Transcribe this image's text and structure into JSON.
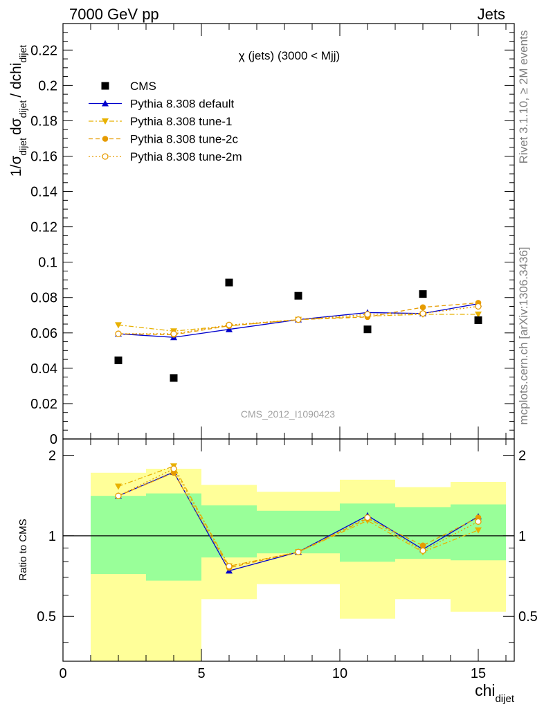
{
  "header": {
    "left": "7000 GeV pp",
    "right": "Jets"
  },
  "side_labels": {
    "rivet": "Rivet 3.1.10, ≥ 2M events",
    "mcplots": "mcplots.cern.ch [arXiv:1306.3436]"
  },
  "chart_data": [
    {
      "type": "scatter",
      "title": "χ (jets) (3000 < Mjj)",
      "watermark": "CMS_2012_I1090423",
      "ylabel": "1/σ_dijet dσ_dijet / dchi_dijet",
      "xlim": [
        0,
        16.3
      ],
      "ylim": [
        0,
        0.235
      ],
      "x_ticks": [
        0,
        5,
        10,
        15
      ],
      "y_ticks": [
        0,
        0.02,
        0.04,
        0.06,
        0.08,
        0.1,
        0.12,
        0.14,
        0.16,
        0.18,
        0.2,
        0.22
      ],
      "y_tick_labels": [
        "0",
        "0.02",
        "0.04",
        "0.06",
        "0.08",
        "0.1",
        "0.12",
        "0.14",
        "0.16",
        "0.18",
        "0.2",
        "0.22"
      ],
      "legend_position": "top-left",
      "series": [
        {
          "name": "CMS",
          "color": "#000000",
          "marker": "square",
          "line": "none",
          "x": [
            2,
            4,
            6,
            8.5,
            11,
            13,
            15
          ],
          "y": [
            0.0445,
            0.0345,
            0.0885,
            0.081,
            0.062,
            0.082,
            0.0672
          ]
        },
        {
          "name": "Pythia 8.308 default",
          "color": "#0000cc",
          "marker": "triangle-up",
          "line": "solid",
          "x": [
            2,
            4,
            6,
            8.5,
            11,
            13,
            15
          ],
          "y": [
            0.0595,
            0.0575,
            0.062,
            0.0675,
            0.0715,
            0.071,
            0.0765
          ]
        },
        {
          "name": "Pythia 8.308 tune-1",
          "color": "#e8b100",
          "marker": "triangle-down",
          "line": "dashdot",
          "x": [
            2,
            4,
            6,
            8.5,
            11,
            13,
            15
          ],
          "y": [
            0.0645,
            0.061,
            0.064,
            0.0675,
            0.0695,
            0.0705,
            0.0705
          ]
        },
        {
          "name": "Pythia 8.308 tune-2c",
          "color": "#e69b00",
          "marker": "circle",
          "line": "dashed",
          "x": [
            2,
            4,
            6,
            8.5,
            11,
            13,
            15
          ],
          "y": [
            0.0595,
            0.059,
            0.064,
            0.0675,
            0.069,
            0.0745,
            0.077
          ]
        },
        {
          "name": "Pythia 8.308 tune-2m",
          "color": "#e69b00",
          "marker": "circle-open",
          "line": "dotted",
          "x": [
            2,
            4,
            6,
            8.5,
            11,
            13,
            15
          ],
          "y": [
            0.0595,
            0.0595,
            0.0645,
            0.0675,
            0.0705,
            0.071,
            0.075
          ]
        }
      ]
    },
    {
      "type": "scatter",
      "xlabel": "chi_dijet",
      "ylabel": "Ratio to CMS",
      "xlim": [
        0,
        16.3
      ],
      "ylim": [
        0.34,
        2.3
      ],
      "x_ticks": [
        0,
        5,
        10,
        15
      ],
      "y_ticks": [
        0.5,
        1,
        2
      ],
      "y_tick_labels": [
        "0.5",
        "1",
        "2"
      ],
      "bands": [
        {
          "x0": 1,
          "x1": 3,
          "inner": [
            0.72,
            1.41
          ],
          "outer": [
            0.0,
            1.72
          ]
        },
        {
          "x0": 3,
          "x1": 5,
          "inner": [
            0.68,
            1.44
          ],
          "outer": [
            0.0,
            1.78
          ]
        },
        {
          "x0": 5,
          "x1": 7,
          "inner": [
            0.83,
            1.3
          ],
          "outer": [
            0.58,
            1.55
          ]
        },
        {
          "x0": 7,
          "x1": 10,
          "inner": [
            0.86,
            1.24
          ],
          "outer": [
            0.66,
            1.46
          ]
        },
        {
          "x0": 10,
          "x1": 12,
          "inner": [
            0.8,
            1.32
          ],
          "outer": [
            0.49,
            1.62
          ]
        },
        {
          "x0": 12,
          "x1": 14,
          "inner": [
            0.82,
            1.28
          ],
          "outer": [
            0.58,
            1.52
          ]
        },
        {
          "x0": 14,
          "x1": 16,
          "inner": [
            0.81,
            1.31
          ],
          "outer": [
            0.52,
            1.59
          ]
        }
      ],
      "band_colors": {
        "inner": "#99ff99",
        "outer": "#ffff99"
      },
      "series": [
        {
          "name": "Pythia 8.308 default",
          "color": "#0000cc",
          "marker": "triangle-up",
          "line": "solid",
          "x": [
            2,
            4,
            6,
            8.5,
            11,
            13,
            15
          ],
          "y": [
            1.41,
            1.73,
            0.74,
            0.87,
            1.19,
            0.89,
            1.18
          ]
        },
        {
          "name": "Pythia 8.308 tune-1",
          "color": "#e8b100",
          "marker": "triangle-down",
          "line": "dashdot",
          "x": [
            2,
            4,
            6,
            8.5,
            11,
            13,
            15
          ],
          "y": [
            1.53,
            1.82,
            0.77,
            0.87,
            1.14,
            0.87,
            1.05
          ]
        },
        {
          "name": "Pythia 8.308 tune-2c",
          "color": "#e69b00",
          "marker": "circle",
          "line": "dashed",
          "x": [
            2,
            4,
            6,
            8.5,
            11,
            13,
            15
          ],
          "y": [
            1.41,
            1.72,
            0.76,
            0.87,
            1.16,
            0.92,
            1.17
          ]
        },
        {
          "name": "Pythia 8.308 tune-2m",
          "color": "#e69b00",
          "marker": "circle-open",
          "line": "dotted",
          "x": [
            2,
            4,
            6,
            8.5,
            11,
            13,
            15
          ],
          "y": [
            1.41,
            1.78,
            0.77,
            0.87,
            1.17,
            0.88,
            1.13
          ]
        }
      ]
    }
  ]
}
